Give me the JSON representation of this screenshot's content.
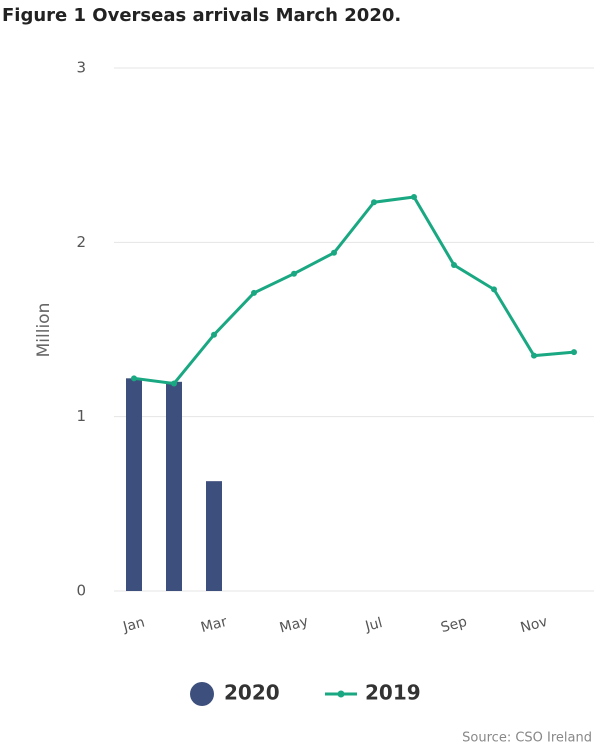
{
  "chart_data": {
    "type": "bar",
    "title": "Figure 1 Overseas arrivals March 2020.",
    "y_label": "Million",
    "source": "Source: CSO Ireland",
    "categories": [
      "Jan",
      null,
      "Mar",
      null,
      "May",
      null,
      "Jul",
      null,
      "Sep",
      null,
      "Nov",
      null
    ],
    "series": [
      {
        "name": "2020",
        "type": "bar",
        "color": "#3d4f7c",
        "values": [
          1.22,
          1.2,
          0.63,
          null,
          null,
          null,
          null,
          null,
          null,
          null,
          null,
          null
        ]
      },
      {
        "name": "2019",
        "type": "line",
        "color": "#1aa882",
        "values": [
          1.22,
          1.19,
          1.47,
          1.71,
          1.82,
          1.94,
          2.23,
          2.26,
          1.87,
          1.73,
          1.35,
          1.37
        ]
      }
    ],
    "ylim": [
      0,
      3
    ],
    "yticks": [
      0,
      1,
      2,
      3
    ],
    "grid": true,
    "legend": "bottom"
  }
}
